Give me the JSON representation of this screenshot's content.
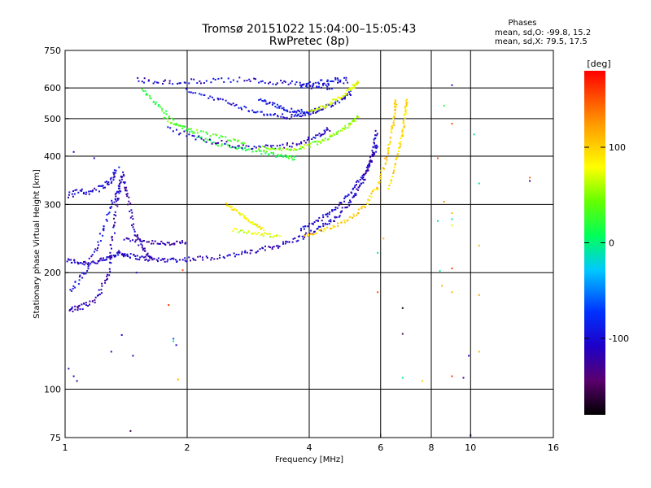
{
  "chart_data": {
    "type": "scatter",
    "title": "Tromsø 20151022 15:04:00–15:05:43",
    "subtitle": "RwPretec (8p)",
    "phases": {
      "heading": "Phases",
      "line_o": "mean, sd,O: -99.8, 15.2",
      "line_x": "mean, sd,X:  79.5, 17.5"
    },
    "xlabel": "Frequency [MHz]",
    "ylabel": "Stationary phase Virtual Height [km]",
    "x_scale": "log",
    "y_scale": "log",
    "xlim": [
      1,
      16
    ],
    "ylim": [
      75,
      750
    ],
    "x_ticks": [
      {
        "value": 1,
        "label": "1"
      },
      {
        "value": 2,
        "label": "2"
      },
      {
        "value": 4,
        "label": "4"
      },
      {
        "value": 6,
        "label": "6"
      },
      {
        "value": 8,
        "label": "8"
      },
      {
        "value": 10,
        "label": "10"
      },
      {
        "value": 16,
        "label": "16"
      }
    ],
    "y_ticks": [
      {
        "value": 75,
        "label": "75"
      },
      {
        "value": 100,
        "label": "100"
      },
      {
        "value": 200,
        "label": "200"
      },
      {
        "value": 300,
        "label": "300"
      },
      {
        "value": 400,
        "label": "400"
      },
      {
        "value": 500,
        "label": "500"
      },
      {
        "value": 600,
        "label": "600"
      },
      {
        "value": 750,
        "label": "750"
      }
    ],
    "grid_x": [
      2,
      4,
      6,
      8,
      10
    ],
    "grid_y": [
      100,
      200,
      300,
      400,
      500,
      600
    ],
    "grid": true,
    "colorbar": {
      "label": "[deg]",
      "range": [
        -180,
        180
      ],
      "ticks": [
        {
          "value": 100,
          "label": "100"
        },
        {
          "value": 0,
          "label": "0"
        },
        {
          "value": -100,
          "label": "-100"
        }
      ]
    },
    "traces": [
      {
        "phase": -110,
        "spread": 0.014,
        "points": [
          [
            1.01,
            215
          ],
          [
            1.1,
            212
          ],
          [
            1.2,
            213
          ],
          [
            1.28,
            218
          ],
          [
            1.35,
            225
          ],
          [
            1.42,
            222
          ],
          [
            1.55,
            218
          ],
          [
            1.7,
            216
          ],
          [
            1.9,
            216
          ],
          [
            2.2,
            218
          ],
          [
            2.6,
            222
          ],
          [
            3.0,
            228
          ],
          [
            3.4,
            236
          ],
          [
            3.8,
            246
          ],
          [
            4.2,
            258
          ],
          [
            4.6,
            275
          ],
          [
            5.0,
            300
          ],
          [
            5.3,
            330
          ],
          [
            5.55,
            365
          ],
          [
            5.75,
            410
          ],
          [
            5.88,
            470
          ]
        ]
      },
      {
        "phase": -105,
        "spread": 0.012,
        "points": [
          [
            3.8,
            258
          ],
          [
            4.2,
            272
          ],
          [
            4.6,
            290
          ],
          [
            5.0,
            318
          ],
          [
            5.4,
            352
          ],
          [
            5.7,
            390
          ],
          [
            5.9,
            430
          ]
        ]
      },
      {
        "phase": 100,
        "spread": 0.012,
        "points": [
          [
            3.9,
            248
          ],
          [
            4.4,
            258
          ],
          [
            5.0,
            275
          ],
          [
            5.5,
            298
          ],
          [
            5.9,
            335
          ],
          [
            6.2,
            395
          ],
          [
            6.4,
            460
          ],
          [
            6.5,
            520
          ],
          [
            6.55,
            560
          ]
        ]
      },
      {
        "phase": 95,
        "spread": 0.01,
        "points": [
          [
            6.3,
            330
          ],
          [
            6.6,
            400
          ],
          [
            6.8,
            460
          ],
          [
            6.9,
            520
          ],
          [
            6.95,
            560
          ]
        ]
      },
      {
        "phase": -115,
        "spread": 0.016,
        "points": [
          [
            1.02,
            160
          ],
          [
            1.1,
            163
          ],
          [
            1.2,
            172
          ],
          [
            1.28,
            200
          ],
          [
            1.32,
            260
          ],
          [
            1.35,
            320
          ],
          [
            1.38,
            360
          ],
          [
            1.42,
            320
          ],
          [
            1.48,
            260
          ],
          [
            1.55,
            230
          ],
          [
            1.65,
            218
          ]
        ]
      },
      {
        "phase": -105,
        "spread": 0.02,
        "points": [
          [
            1.0,
            318
          ],
          [
            1.1,
            322
          ],
          [
            1.22,
            330
          ],
          [
            1.3,
            345
          ],
          [
            1.35,
            370
          ]
        ]
      },
      {
        "phase": -100,
        "spread": 0.015,
        "points": [
          [
            1.03,
            180
          ],
          [
            1.12,
            200
          ],
          [
            1.22,
            245
          ],
          [
            1.3,
            300
          ],
          [
            1.38,
            330
          ]
        ]
      },
      {
        "phase": 20,
        "spread": 0.012,
        "points": [
          [
            1.55,
            590
          ],
          [
            1.7,
            540
          ],
          [
            1.9,
            480
          ],
          [
            2.2,
            440
          ],
          [
            2.6,
            420
          ],
          [
            3.0,
            410
          ],
          [
            3.4,
            400
          ],
          [
            3.7,
            395
          ]
        ]
      },
      {
        "phase": 35,
        "spread": 0.01,
        "points": [
          [
            1.75,
            500
          ],
          [
            2.0,
            470
          ],
          [
            2.4,
            448
          ],
          [
            2.8,
            430
          ]
        ]
      },
      {
        "phase": -110,
        "spread": 0.015,
        "points": [
          [
            1.8,
            470
          ],
          [
            2.2,
            440
          ],
          [
            2.7,
            425
          ],
          [
            3.2,
            420
          ],
          [
            3.7,
            430
          ],
          [
            4.2,
            450
          ],
          [
            4.5,
            470
          ]
        ]
      },
      {
        "phase": -105,
        "spread": 0.015,
        "points": [
          [
            1.5,
            630
          ],
          [
            1.8,
            620
          ],
          [
            2.2,
            625
          ],
          [
            2.8,
            630
          ],
          [
            3.4,
            620
          ],
          [
            4.0,
            610
          ],
          [
            4.6,
            600
          ]
        ]
      },
      {
        "phase": -100,
        "spread": 0.012,
        "points": [
          [
            2.0,
            590
          ],
          [
            2.4,
            560
          ],
          [
            2.8,
            530
          ],
          [
            3.2,
            510
          ],
          [
            3.6,
            505
          ],
          [
            4.0,
            515
          ],
          [
            4.4,
            535
          ],
          [
            4.8,
            560
          ],
          [
            5.1,
            585
          ]
        ]
      },
      {
        "phase": -95,
        "spread": 0.012,
        "points": [
          [
            3.0,
            560
          ],
          [
            3.3,
            540
          ],
          [
            3.6,
            525
          ],
          [
            3.9,
            520
          ],
          [
            4.3,
            530
          ]
        ]
      },
      {
        "phase": 75,
        "spread": 0.01,
        "points": [
          [
            4.0,
            520
          ],
          [
            4.4,
            540
          ],
          [
            4.8,
            570
          ],
          [
            5.1,
            600
          ],
          [
            5.3,
            625
          ]
        ]
      },
      {
        "phase": 50,
        "spread": 0.012,
        "points": [
          [
            3.0,
            420
          ],
          [
            3.4,
            415
          ],
          [
            3.8,
            420
          ],
          [
            4.2,
            435
          ],
          [
            4.6,
            455
          ],
          [
            5.0,
            480
          ],
          [
            5.3,
            505
          ]
        ]
      },
      {
        "phase": -90,
        "spread": 0.02,
        "points": [
          [
            3.8,
            600
          ],
          [
            4.2,
            615
          ],
          [
            4.6,
            625
          ],
          [
            5.0,
            630
          ]
        ]
      },
      {
        "phase": 85,
        "spread": 0.008,
        "points": [
          [
            2.5,
            300
          ],
          [
            2.7,
            285
          ],
          [
            2.9,
            268
          ],
          [
            3.1,
            258
          ]
        ]
      },
      {
        "phase": 70,
        "spread": 0.01,
        "points": [
          [
            2.6,
            258
          ],
          [
            3.0,
            252
          ],
          [
            3.4,
            248
          ]
        ]
      },
      {
        "phase": -120,
        "spread": 0.01,
        "points": [
          [
            1.4,
            245
          ],
          [
            1.6,
            240
          ],
          [
            1.8,
            238
          ],
          [
            2.0,
            240
          ]
        ]
      }
    ],
    "noise": [
      [
        9.0,
        610,
        -100
      ],
      [
        9.0,
        485,
        150
      ],
      [
        9.0,
        285,
        110
      ],
      [
        9.0,
        275,
        -10
      ],
      [
        9.0,
        265,
        70
      ],
      [
        9.0,
        205,
        160
      ],
      [
        9.0,
        178,
        110
      ],
      [
        9.0,
        108,
        160
      ],
      [
        10.2,
        455,
        -10
      ],
      [
        10.5,
        340,
        -10
      ],
      [
        10.5,
        235,
        110
      ],
      [
        10.5,
        175,
        120
      ],
      [
        10.5,
        125,
        110
      ],
      [
        9.9,
        122,
        -120
      ],
      [
        8.3,
        395,
        150
      ],
      [
        8.3,
        272,
        -10
      ],
      [
        8.4,
        202,
        -10
      ],
      [
        8.5,
        185,
        110
      ],
      [
        8.6,
        305,
        130
      ],
      [
        14.0,
        345,
        -130
      ],
      [
        14.0,
        352,
        140
      ],
      [
        6.8,
        162,
        -180
      ],
      [
        6.8,
        139,
        -150
      ],
      [
        6.8,
        107,
        -10
      ],
      [
        7.6,
        105,
        100
      ],
      [
        9.6,
        107,
        -120
      ],
      [
        5.9,
        178,
        150
      ],
      [
        5.9,
        225,
        -10
      ],
      [
        6.1,
        245,
        110
      ],
      [
        1.95,
        203,
        150
      ],
      [
        1.5,
        200,
        -120
      ],
      [
        1.8,
        165,
        160
      ],
      [
        1.85,
        135,
        -60
      ],
      [
        1.85,
        133,
        -10
      ],
      [
        1.88,
        130,
        -100
      ],
      [
        1.9,
        106,
        110
      ],
      [
        1.38,
        138,
        -110
      ],
      [
        1.47,
        122,
        -120
      ],
      [
        1.3,
        125,
        -100
      ],
      [
        1.45,
        78,
        -150
      ],
      [
        1.02,
        113,
        -120
      ],
      [
        1.05,
        108,
        -120
      ],
      [
        1.07,
        105,
        -120
      ],
      [
        1.18,
        395,
        -110
      ],
      [
        1.05,
        410,
        -100
      ],
      [
        10.0,
        76,
        -130
      ],
      [
        8.6,
        540,
        20
      ]
    ]
  }
}
